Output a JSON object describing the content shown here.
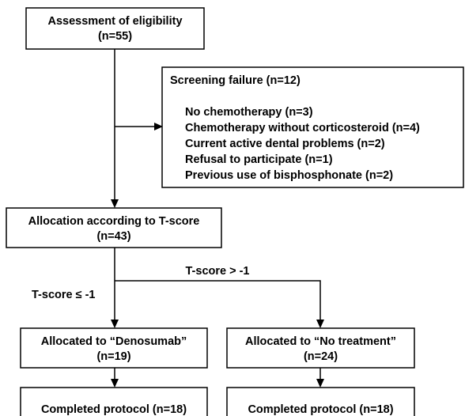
{
  "nodes": [
    {
      "lines": [
        "Assessment of eligibility",
        "(n=55)"
      ]
    },
    {
      "lines": [
        "Allocation according to T-score",
        "(n=43)"
      ]
    },
    {
      "lines": [
        "Allocated to “Denosumab”",
        "(n=19)"
      ]
    },
    {
      "lines": [
        "Allocated to “No treatment”",
        "(n=24)"
      ]
    },
    {
      "lines": [
        "Completed protocol (n=18)"
      ]
    },
    {
      "lines": [
        "Completed protocol (n=18)"
      ]
    }
  ],
  "screening": {
    "title": "Screening failure (n=12)",
    "items": [
      "No chemotherapy (n=3)",
      "Chemotherapy without corticosteroid (n=4)",
      "Current active dental problems (n=2)",
      "Refusal to participate (n=1)",
      "Previous use of bisphosphonate (n=2)"
    ]
  },
  "edge_labels": [
    "T-score > -1",
    "T-score ≤ -1"
  ]
}
